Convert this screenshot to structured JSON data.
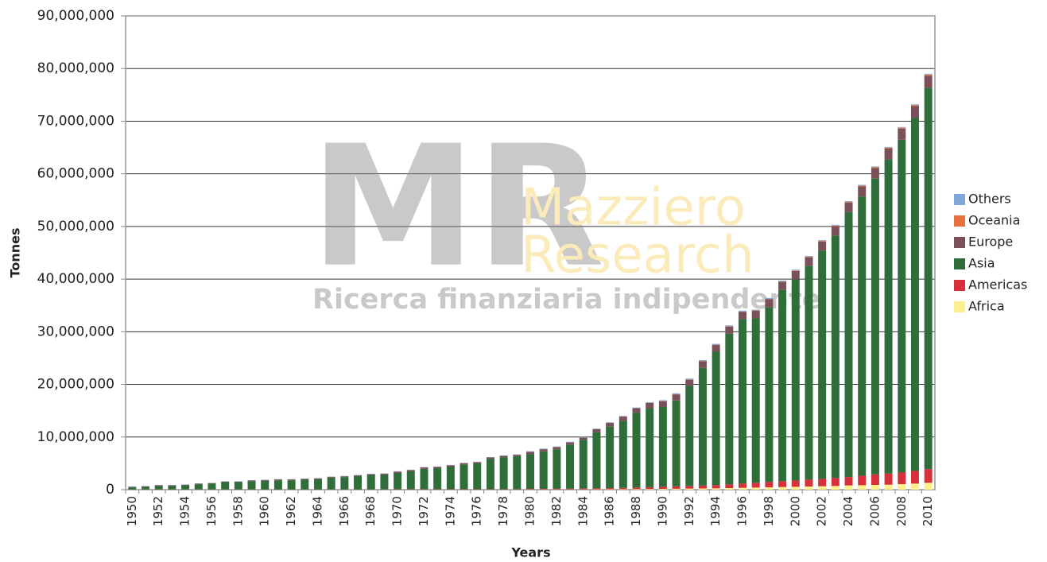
{
  "chart_data": {
    "type": "stacked_bar",
    "x_label": "Years",
    "y_label": "Tonnes",
    "watermark": {
      "logo": "MR",
      "name_line1": "Mazziero",
      "name_line2": "Research",
      "tagline": "Ricerca finanziaria indipendente"
    },
    "categories": [
      "1950",
      null,
      "1952",
      null,
      "1954",
      null,
      "1956",
      null,
      "1958",
      null,
      "1960",
      null,
      "1962",
      null,
      "1964",
      null,
      "1966",
      null,
      "1968",
      null,
      "1970",
      null,
      "1972",
      null,
      "1974",
      null,
      "1976",
      null,
      "1978",
      null,
      "1980",
      null,
      "1982",
      null,
      "1984",
      null,
      "1986",
      null,
      "1988",
      null,
      "1990",
      null,
      "1992",
      null,
      "1994",
      null,
      "1996",
      null,
      "1998",
      null,
      "2000",
      null,
      "2002",
      null,
      "2004",
      null,
      "2006",
      null,
      "2008",
      null,
      "2010"
    ],
    "series": [
      {
        "name": "Africa",
        "color": "#fbf08c",
        "values": [
          10000,
          10000,
          10000,
          10000,
          10000,
          10000,
          10000,
          10000,
          10000,
          10000,
          10000,
          10000,
          10000,
          10000,
          10000,
          10000,
          10000,
          10000,
          10000,
          10000,
          20000,
          20000,
          20000,
          20000,
          20000,
          20000,
          20000,
          20000,
          20000,
          20000,
          40000,
          40000,
          40000,
          40000,
          40000,
          60000,
          75000,
          90000,
          105000,
          120000,
          150000,
          175000,
          200000,
          225000,
          250000,
          300000,
          350000,
          400000,
          450000,
          500000,
          550000,
          600000,
          650000,
          700000,
          800000,
          850000,
          900000,
          950000,
          1050000,
          1150000,
          1300000
        ]
      },
      {
        "name": "Americas",
        "color": "#d7303a",
        "values": [
          30000,
          30000,
          30000,
          30000,
          30000,
          30000,
          30000,
          30000,
          30000,
          30000,
          30000,
          30000,
          30000,
          30000,
          30000,
          30000,
          30000,
          30000,
          30000,
          30000,
          50000,
          50000,
          50000,
          50000,
          50000,
          50000,
          50000,
          50000,
          50000,
          50000,
          100000,
          110000,
          120000,
          130000,
          150000,
          180000,
          220000,
          260000,
          300000,
          350000,
          400000,
          450000,
          500000,
          550000,
          600000,
          700000,
          800000,
          900000,
          1000000,
          1100000,
          1200000,
          1300000,
          1400000,
          1500000,
          1600000,
          1800000,
          2000000,
          2100000,
          2200000,
          2400000,
          2600000
        ]
      },
      {
        "name": "Asia",
        "color": "#2f6d3b",
        "values": [
          400000,
          500000,
          700000,
          700000,
          800000,
          1000000,
          1100000,
          1400000,
          1400000,
          1600000,
          1650000,
          1750000,
          1750000,
          1850000,
          1950000,
          2250000,
          2350000,
          2550000,
          2750000,
          2850000,
          3110000,
          3410000,
          3910000,
          4010000,
          4310000,
          4710000,
          4910000,
          5810000,
          6110000,
          6310000,
          6640000,
          7130000,
          7520000,
          8410000,
          9290000,
          10640000,
          11685000,
          12730000,
          14175000,
          15010000,
          15150000,
          16325000,
          19000000,
          22375000,
          25350000,
          28650000,
          31250000,
          31250000,
          33250000,
          36350000,
          38200000,
          40590000,
          43380000,
          46070000,
          50310000,
          53050000,
          56190000,
          59680000,
          63220000,
          67110000,
          72450000
        ]
      },
      {
        "name": "Europe",
        "color": "#7c5058",
        "values": [
          100000,
          100000,
          100000,
          100000,
          100000,
          100000,
          100000,
          100000,
          100000,
          100000,
          150000,
          150000,
          150000,
          150000,
          150000,
          150000,
          150000,
          150000,
          150000,
          150000,
          250000,
          250000,
          250000,
          250000,
          250000,
          250000,
          250000,
          250000,
          250000,
          250000,
          400000,
          400000,
          400000,
          400000,
          400000,
          600000,
          700000,
          800000,
          900000,
          1000000,
          1100000,
          1150000,
          1200000,
          1250000,
          1300000,
          1350000,
          1400000,
          1450000,
          1500000,
          1550000,
          1600000,
          1650000,
          1700000,
          1750000,
          1800000,
          1900000,
          2000000,
          2050000,
          2100000,
          2200000,
          2300000
        ]
      },
      {
        "name": "Oceania",
        "color": "#e8703a",
        "values": [
          10000,
          10000,
          10000,
          10000,
          10000,
          10000,
          10000,
          10000,
          10000,
          10000,
          10000,
          10000,
          10000,
          10000,
          10000,
          10000,
          10000,
          10000,
          10000,
          10000,
          20000,
          20000,
          20000,
          20000,
          20000,
          20000,
          20000,
          20000,
          20000,
          20000,
          20000,
          20000,
          20000,
          20000,
          20000,
          20000,
          20000,
          20000,
          20000,
          20000,
          50000,
          50000,
          50000,
          50000,
          50000,
          50000,
          50000,
          50000,
          50000,
          50000,
          100000,
          110000,
          120000,
          130000,
          140000,
          150000,
          160000,
          170000,
          180000,
          190000,
          200000
        ]
      },
      {
        "name": "Others",
        "color": "#7ea6d8",
        "values": [
          50000,
          50000,
          50000,
          50000,
          50000,
          50000,
          50000,
          50000,
          50000,
          50000,
          50000,
          50000,
          50000,
          50000,
          50000,
          50000,
          50000,
          50000,
          50000,
          50000,
          50000,
          50000,
          50000,
          50000,
          50000,
          50000,
          50000,
          50000,
          50000,
          50000,
          100000,
          100000,
          100000,
          100000,
          100000,
          100000,
          100000,
          100000,
          100000,
          100000,
          150000,
          150000,
          150000,
          150000,
          150000,
          150000,
          150000,
          150000,
          150000,
          150000,
          150000,
          150000,
          150000,
          150000,
          150000,
          150000,
          150000,
          150000,
          150000,
          150000,
          150000
        ]
      }
    ],
    "ylim": [
      0,
      90000000
    ],
    "yticks": [
      {
        "value": 0,
        "label": "0"
      },
      {
        "value": 10000000,
        "label": "10,000,000"
      },
      {
        "value": 20000000,
        "label": "20,000,000"
      },
      {
        "value": 30000000,
        "label": "30,000,000"
      },
      {
        "value": 40000000,
        "label": "40,000,000"
      },
      {
        "value": 50000000,
        "label": "50,000,000"
      },
      {
        "value": 60000000,
        "label": "60,000,000"
      },
      {
        "value": 70000000,
        "label": "70,000,000"
      },
      {
        "value": 80000000,
        "label": "80,000,000"
      },
      {
        "value": 90000000,
        "label": "90,000,000"
      }
    ],
    "grid": true,
    "legend": "right"
  }
}
